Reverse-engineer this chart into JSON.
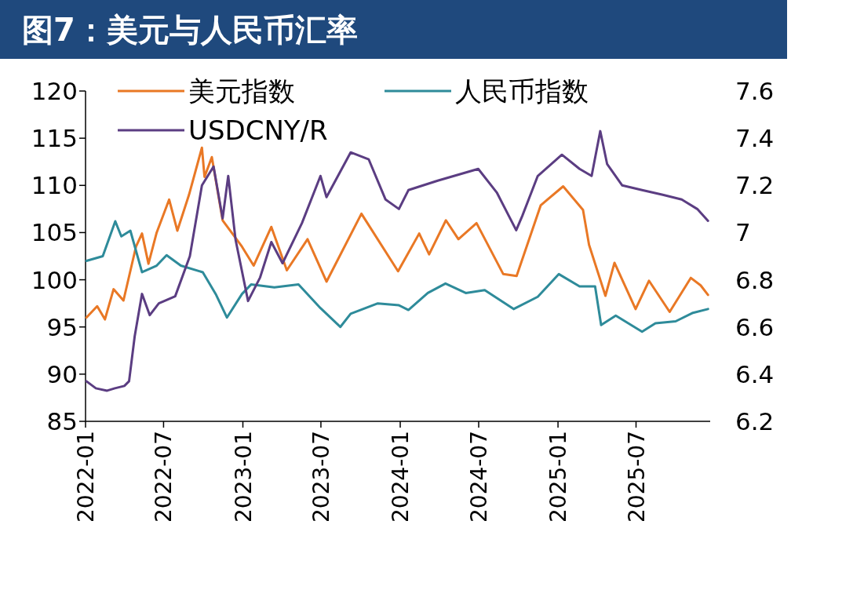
{
  "chart_data": {
    "type": "line",
    "title": "图7：美元与人民币汇率",
    "xlim": [
      "2022-01-01",
      "2025-12-20"
    ],
    "xticks": [
      {
        "value": "2022-01",
        "label": "2022-01"
      },
      {
        "value": "2022-07",
        "label": "2022-07"
      },
      {
        "value": "2023-01",
        "label": "2023-01"
      },
      {
        "value": "2023-07",
        "label": "2023-07"
      },
      {
        "value": "2024-01",
        "label": "2024-01"
      },
      {
        "value": "2024-07",
        "label": "2024-07"
      },
      {
        "value": "2025-01",
        "label": "2025-01"
      },
      {
        "value": "2025-07",
        "label": "2025-07"
      }
    ],
    "ylim": [
      85,
      120
    ],
    "yticks": [
      85,
      90,
      95,
      100,
      105,
      110,
      115,
      120
    ],
    "y2lim": [
      6.2,
      7.6
    ],
    "y2ticks": [
      6.2,
      6.4,
      6.6,
      6.8,
      7,
      7.2,
      7.4,
      7.6
    ],
    "legend": "top",
    "grid": false,
    "series": [
      {
        "name": "美元指数",
        "color": "#e97825",
        "x": [
          "2022-01-03",
          "2022-01-28",
          "2022-02-15",
          "2022-03-07",
          "2022-03-30",
          "2022-04-28",
          "2022-05-12",
          "2022-05-27",
          "2022-06-15",
          "2022-07-14",
          "2022-08-02",
          "2022-08-29",
          "2022-09-28",
          "2022-10-04",
          "2022-10-21",
          "2022-11-15",
          "2022-12-30",
          "2023-01-26",
          "2023-03-08",
          "2023-04-13",
          "2023-05-31",
          "2023-07-14",
          "2023-10-03",
          "2023-12-27",
          "2024-02-14",
          "2024-03-08",
          "2024-04-16",
          "2024-05-15",
          "2024-06-26",
          "2024-08-27",
          "2024-09-27",
          "2024-11-22",
          "2025-01-13",
          "2025-02-28",
          "2025-03-14",
          "2025-04-21",
          "2025-05-12",
          "2025-06-30",
          "2025-07-31",
          "2025-09-17",
          "2025-11-05",
          "2025-11-28",
          "2025-12-15"
        ],
        "values": [
          96.0,
          97.2,
          95.8,
          99.0,
          97.8,
          103.5,
          104.9,
          101.7,
          105.0,
          108.5,
          105.2,
          109.0,
          114.0,
          110.9,
          113.0,
          106.3,
          103.5,
          101.5,
          105.6,
          101.0,
          104.3,
          99.8,
          107.0,
          100.9,
          104.9,
          102.7,
          106.3,
          104.3,
          106.0,
          100.6,
          100.4,
          107.9,
          109.9,
          107.4,
          103.7,
          98.3,
          101.8,
          96.9,
          99.9,
          96.6,
          100.2,
          99.4,
          98.4
        ]
      },
      {
        "name": "人民币指数",
        "color": "#2e8b9a",
        "x": [
          "2022-01-03",
          "2022-02-10",
          "2022-03-11",
          "2022-03-25",
          "2022-04-15",
          "2022-05-12",
          "2022-06-15",
          "2022-07-08",
          "2022-08-10",
          "2022-09-30",
          "2022-10-31",
          "2022-11-25",
          "2022-12-30",
          "2023-01-20",
          "2023-03-15",
          "2023-05-10",
          "2023-06-30",
          "2023-08-15",
          "2023-09-08",
          "2023-11-10",
          "2023-12-29",
          "2024-01-20",
          "2024-03-05",
          "2024-04-15",
          "2024-06-01",
          "2024-07-15",
          "2024-09-20",
          "2024-11-15",
          "2025-01-03",
          "2025-02-20",
          "2025-03-28",
          "2025-04-11",
          "2025-05-15",
          "2025-07-15",
          "2025-08-15",
          "2025-10-01",
          "2025-11-10",
          "2025-12-15"
        ],
        "values": [
          102.0,
          102.5,
          106.2,
          104.6,
          105.2,
          100.8,
          101.5,
          102.6,
          101.5,
          100.8,
          98.4,
          96.0,
          98.5,
          99.5,
          99.2,
          99.5,
          97.0,
          95.0,
          96.4,
          97.5,
          97.3,
          96.8,
          98.6,
          99.6,
          98.6,
          98.9,
          96.9,
          98.2,
          100.6,
          99.3,
          99.3,
          95.2,
          96.2,
          94.5,
          95.4,
          95.6,
          96.5,
          96.9
        ]
      },
      {
        "name": "USDCNY/R",
        "color": "#5b3d82",
        "axis": "y2",
        "x": [
          "2022-01-03",
          "2022-01-25",
          "2022-02-20",
          "2022-03-10",
          "2022-04-01",
          "2022-04-12",
          "2022-04-25",
          "2022-05-12",
          "2022-05-30",
          "2022-06-20",
          "2022-07-28",
          "2022-08-31",
          "2022-09-28",
          "2022-10-25",
          "2022-11-15",
          "2022-11-28",
          "2022-12-15",
          "2023-01-13",
          "2023-02-10",
          "2023-03-08",
          "2023-04-03",
          "2023-05-18",
          "2023-06-30",
          "2023-07-14",
          "2023-09-08",
          "2023-10-20",
          "2023-11-28",
          "2023-12-29",
          "2024-01-20",
          "2024-03-28",
          "2024-06-30",
          "2024-08-12",
          "2024-09-26",
          "2024-10-10",
          "2024-11-15",
          "2025-01-10",
          "2025-02-20",
          "2025-03-20",
          "2025-04-09",
          "2025-04-25",
          "2025-05-30",
          "2025-07-15",
          "2025-09-01",
          "2025-10-15",
          "2025-11-20",
          "2025-12-15"
        ],
        "values": [
          6.37,
          6.34,
          6.33,
          6.34,
          6.35,
          6.37,
          6.56,
          6.74,
          6.65,
          6.7,
          6.73,
          6.9,
          7.2,
          7.28,
          7.06,
          7.24,
          6.97,
          6.71,
          6.81,
          6.96,
          6.87,
          7.04,
          7.24,
          7.15,
          7.34,
          7.31,
          7.14,
          7.1,
          7.18,
          7.22,
          7.27,
          7.17,
          7.01,
          7.07,
          7.24,
          7.33,
          7.27,
          7.24,
          7.43,
          7.29,
          7.2,
          7.18,
          7.16,
          7.14,
          7.1,
          7.05
        ]
      }
    ]
  }
}
